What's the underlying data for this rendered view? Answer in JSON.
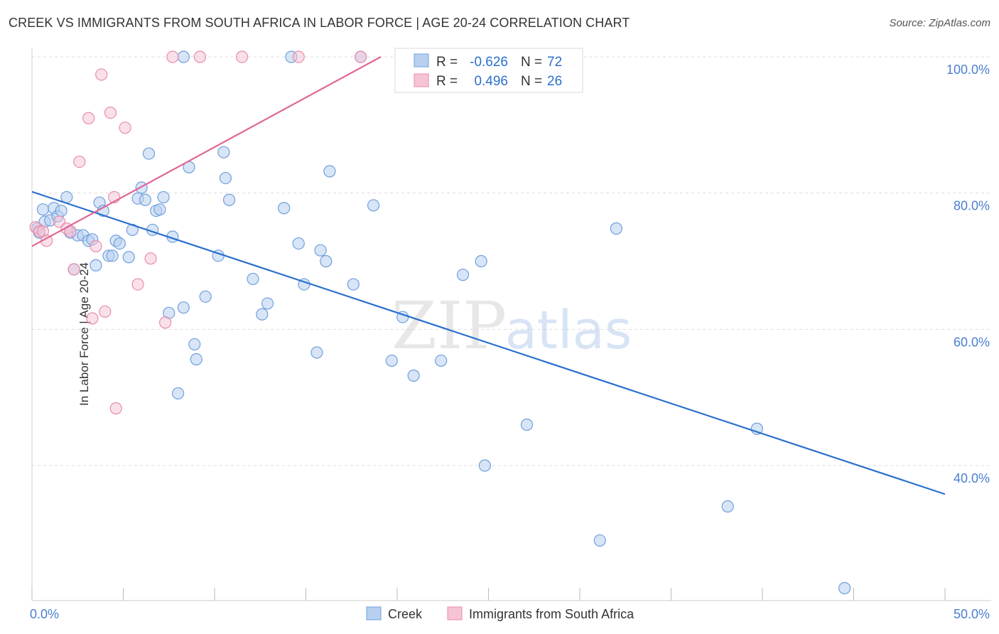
{
  "header": {
    "title": "CREEK VS IMMIGRANTS FROM SOUTH AFRICA IN LABOR FORCE | AGE 20-24 CORRELATION CHART",
    "source": "Source: ZipAtlas.com"
  },
  "watermark": {
    "zip": "ZIP",
    "atlas": "atlas"
  },
  "colors": {
    "creek_fill": "#b8d0f0",
    "creek_stroke": "#6f9fdc",
    "creek_line": "#2b6fcd",
    "sa_fill": "#f6c4d4",
    "sa_stroke": "#e98bab",
    "sa_line": "#e06696",
    "axis_label": "#4a7fd0",
    "grid": "#dddddd"
  },
  "legend": {
    "items": [
      {
        "r_label": "R =",
        "r_value": "-0.626",
        "n_label": "N =",
        "n_value": "72"
      },
      {
        "r_label": "R =",
        "r_value": "0.496",
        "n_label": "N =",
        "n_value": "26"
      }
    ]
  },
  "chart_data": {
    "type": "scatter",
    "title": "CREEK VS IMMIGRANTS FROM SOUTH AFRICA IN LABOR FORCE | AGE 20-24 CORRELATION CHART",
    "xlabel": "",
    "ylabel": "In Labor Force | Age 20-24",
    "xlim": [
      0,
      50
    ],
    "ylim": [
      20,
      101
    ],
    "x_tick_labels": [
      "0.0%",
      "50.0%"
    ],
    "y_ticks": [
      40,
      60,
      80,
      100
    ],
    "y_tick_labels": [
      "40.0%",
      "60.0%",
      "80.0%",
      "100.0%"
    ],
    "legend_position": "bottom",
    "series": [
      {
        "name": "Creek",
        "R": -0.626,
        "N": 72,
        "trend": {
          "x": [
            0,
            50
          ],
          "y": [
            80.2,
            35.8
          ]
        },
        "points": [
          [
            0.3,
            74.8
          ],
          [
            0.4,
            74.2
          ],
          [
            0.6,
            77.6
          ],
          [
            0.7,
            75.8
          ],
          [
            1.0,
            76.0
          ],
          [
            1.2,
            77.8
          ],
          [
            1.4,
            76.6
          ],
          [
            1.6,
            77.4
          ],
          [
            1.9,
            79.4
          ],
          [
            2.1,
            74.2
          ],
          [
            2.3,
            68.8
          ],
          [
            2.5,
            73.8
          ],
          [
            2.8,
            73.8
          ],
          [
            3.1,
            73.0
          ],
          [
            3.3,
            73.2
          ],
          [
            3.5,
            69.4
          ],
          [
            3.7,
            78.6
          ],
          [
            3.9,
            77.4
          ],
          [
            4.2,
            70.8
          ],
          [
            4.4,
            70.8
          ],
          [
            4.6,
            73.0
          ],
          [
            4.8,
            72.6
          ],
          [
            5.3,
            70.6
          ],
          [
            5.5,
            74.6
          ],
          [
            5.8,
            79.2
          ],
          [
            6.0,
            80.8
          ],
          [
            6.2,
            79.0
          ],
          [
            6.4,
            85.8
          ],
          [
            6.6,
            74.6
          ],
          [
            6.8,
            77.4
          ],
          [
            7.0,
            77.6
          ],
          [
            7.2,
            79.4
          ],
          [
            7.5,
            62.4
          ],
          [
            7.7,
            73.6
          ],
          [
            8.0,
            50.6
          ],
          [
            8.3,
            63.2
          ],
          [
            8.6,
            83.8
          ],
          [
            8.9,
            57.8
          ],
          [
            9.0,
            55.6
          ],
          [
            9.5,
            64.8
          ],
          [
            10.2,
            70.8
          ],
          [
            10.5,
            86.0
          ],
          [
            10.6,
            82.2
          ],
          [
            10.8,
            79.0
          ],
          [
            12.1,
            67.4
          ],
          [
            12.6,
            62.2
          ],
          [
            12.9,
            63.8
          ],
          [
            13.8,
            77.8
          ],
          [
            14.6,
            72.6
          ],
          [
            14.9,
            66.6
          ],
          [
            15.6,
            56.6
          ],
          [
            15.8,
            71.6
          ],
          [
            16.1,
            70.0
          ],
          [
            16.3,
            83.2
          ],
          [
            17.6,
            66.6
          ],
          [
            18.7,
            78.2
          ],
          [
            19.7,
            55.4
          ],
          [
            20.3,
            61.8
          ],
          [
            20.9,
            53.2
          ],
          [
            22.4,
            55.4
          ],
          [
            23.6,
            68.0
          ],
          [
            24.6,
            70.0
          ],
          [
            24.8,
            40.0
          ],
          [
            27.1,
            46.0
          ],
          [
            31.1,
            29.0
          ],
          [
            32.0,
            74.8
          ],
          [
            38.1,
            34.0
          ],
          [
            39.7,
            45.4
          ],
          [
            44.5,
            22.0
          ],
          [
            8.3,
            100
          ],
          [
            14.2,
            100
          ],
          [
            18.0,
            100
          ]
        ]
      },
      {
        "name": "Immigrants from South Africa",
        "R": 0.496,
        "N": 26,
        "trend": {
          "x": [
            0,
            19.1
          ],
          "y": [
            72.2,
            100
          ]
        },
        "points": [
          [
            0.2,
            75.0
          ],
          [
            0.4,
            74.4
          ],
          [
            0.6,
            74.4
          ],
          [
            0.8,
            73.0
          ],
          [
            1.5,
            75.8
          ],
          [
            1.9,
            74.8
          ],
          [
            2.1,
            74.4
          ],
          [
            2.3,
            68.8
          ],
          [
            2.6,
            84.6
          ],
          [
            3.1,
            91.0
          ],
          [
            3.3,
            61.6
          ],
          [
            3.5,
            72.2
          ],
          [
            3.8,
            97.4
          ],
          [
            4.0,
            62.6
          ],
          [
            4.3,
            91.8
          ],
          [
            4.5,
            79.4
          ],
          [
            4.6,
            48.4
          ],
          [
            5.1,
            89.6
          ],
          [
            5.8,
            66.6
          ],
          [
            6.5,
            70.4
          ],
          [
            7.3,
            61.0
          ],
          [
            7.7,
            100
          ],
          [
            9.2,
            100
          ],
          [
            11.5,
            100
          ],
          [
            14.6,
            100
          ],
          [
            18.0,
            100
          ]
        ]
      }
    ]
  }
}
